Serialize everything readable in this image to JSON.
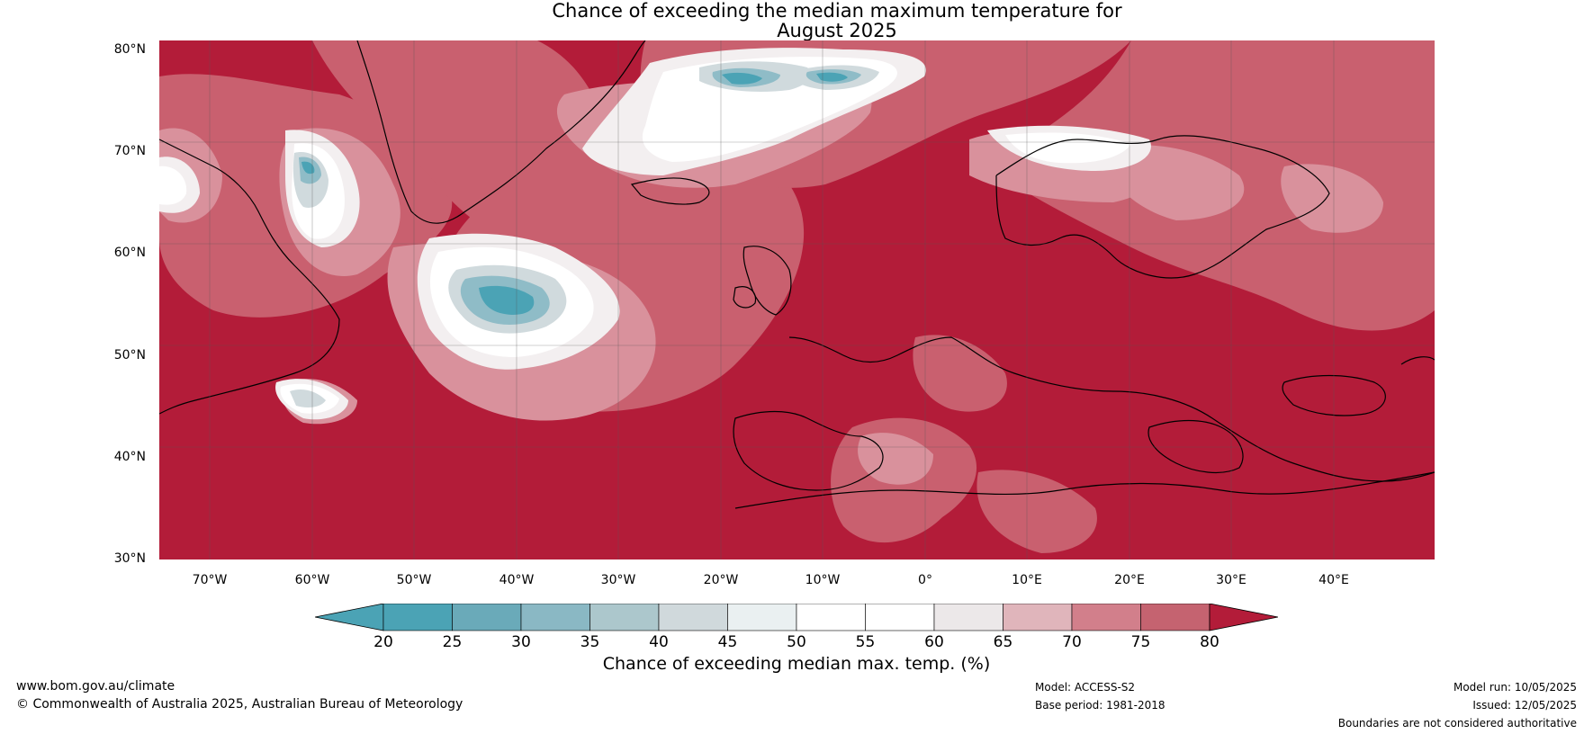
{
  "title_line1": "Chance of exceeding the median maximum temperature for",
  "title_line2": "August 2025",
  "lat_labels": [
    "80°N",
    "70°N",
    "60°N",
    "50°N",
    "40°N",
    "30°N"
  ],
  "lon_labels": [
    "70°W",
    "60°W",
    "50°W",
    "40°W",
    "30°W",
    "20°W",
    "10°W",
    "0°",
    "10°E",
    "20°E",
    "30°E",
    "40°E"
  ],
  "colorbar": {
    "ticks": [
      "20",
      "25",
      "30",
      "35",
      "40",
      "45",
      "50",
      "55",
      "60",
      "65",
      "70",
      "75",
      "80"
    ],
    "colors": [
      "#4ba3b5",
      "#6aaab9",
      "#8ab8c4",
      "#acc7cc",
      "#d0d9dc",
      "#eaf0f1",
      "#ffffff",
      "#ffffff",
      "#ece8e9",
      "#e0b5bb",
      "#d27f8b",
      "#c56370",
      "#b9404f"
    ],
    "under_color": "#4ba3b5",
    "over_color": "#b31c39",
    "label": "Chance of exceeding median max. temp. (%)"
  },
  "footer": {
    "website": "www.bom.gov.au/climate",
    "copyright": "© Commonwealth of Australia 2025, Australian Bureau of Meteorology",
    "model": "Model: ACCESS-S2",
    "base_period": "Base period: 1981-2018",
    "model_run": "Model run: 10/05/2025",
    "issued": "Issued: 12/05/2025",
    "disclaimer": "Boundaries are not considered authoritative"
  }
}
